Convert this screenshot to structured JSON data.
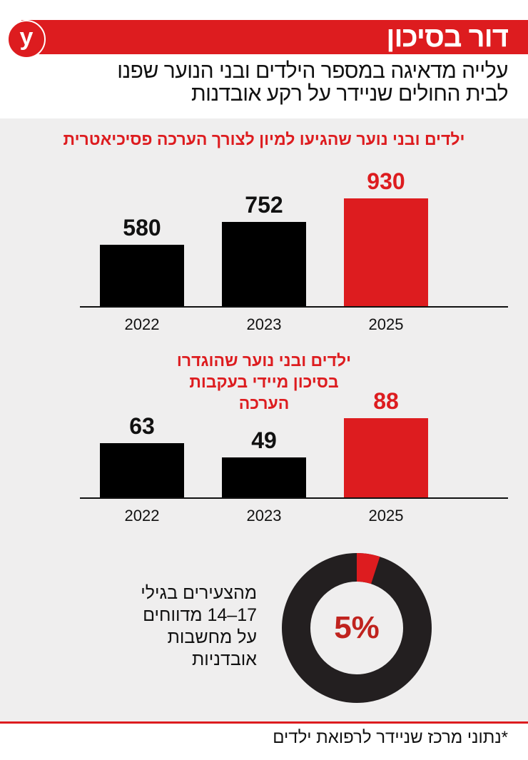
{
  "header": {
    "logo": "y",
    "title": "דור בסיכון",
    "subtitle_lines": [
      "עלייה מדאיגה במספר הילדים ובני הנוער שפנו",
      "לבית החולים שניידר על רקע אובדנות"
    ]
  },
  "colors": {
    "accent": "#dd1c1f",
    "bar": "#000000",
    "background": "#efeeee"
  },
  "chart_data": [
    {
      "type": "bar",
      "title": "ילדים ובני נוער שהגיעו למיון לצורך הערכה פסיכיאטרית",
      "categories": [
        "2022",
        "2023",
        "2025"
      ],
      "values": [
        580,
        752,
        930
      ],
      "labels": [
        "580",
        "752",
        "930"
      ],
      "highlight": "2025"
    },
    {
      "type": "bar",
      "title": "ילדים ובני נוער שהוגדרו בסיכון מיידי בעקבות הערכה",
      "categories": [
        "2022",
        "2023",
        "2025"
      ],
      "values": [
        63,
        49,
        88
      ],
      "labels": [
        "63",
        "49",
        "88"
      ],
      "highlight": "2025"
    },
    {
      "type": "pie",
      "donut": true,
      "values": [
        5,
        95
      ],
      "center_label": "5%",
      "description_lines": [
        "מהצעירים בגילי",
        "17–14 מדווחים",
        "על מחשבות",
        "אובדניות"
      ]
    }
  ],
  "footer": "*נתוני מרכז שניידר לרפואת ילדים"
}
